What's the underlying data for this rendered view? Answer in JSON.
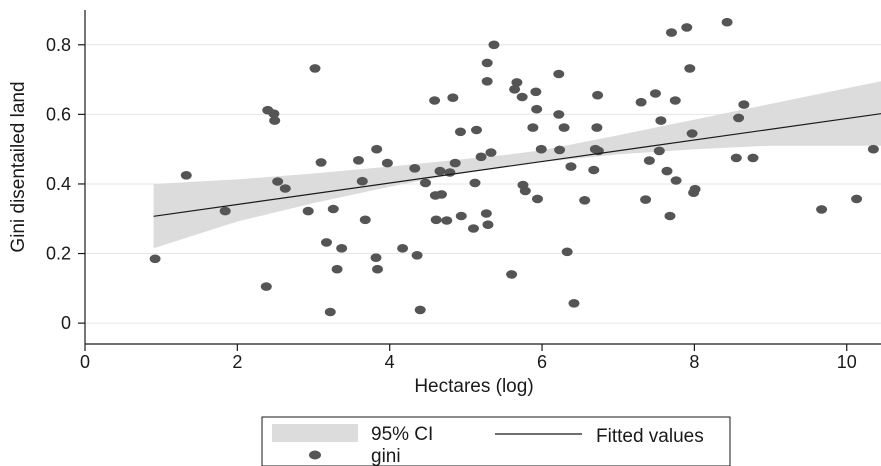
{
  "chart_data": {
    "type": "scatter",
    "xlabel": "Hectares (log)",
    "ylabel": "Gini disentailed land",
    "xlim": [
      0,
      10.45
    ],
    "ylim": [
      -0.06,
      0.9
    ],
    "xticks": [
      0,
      2,
      4,
      6,
      8,
      10
    ],
    "yticks": [
      0,
      0.2,
      0.4,
      0.6,
      0.8
    ],
    "xtick_labels": [
      "0",
      "2",
      "4",
      "6",
      "8",
      "10"
    ],
    "ytick_labels": [
      "0",
      "0.2",
      "0.4",
      "0.6",
      "0.8"
    ],
    "grid": true,
    "legend_position": "bottom",
    "legend": {
      "ci_label": "95% CI",
      "fit_label": "Fitted values",
      "points_label": "gini"
    },
    "colors": {
      "points": "#555555",
      "ci_band": "#dcdcdc",
      "fit_line": "#1a1a1a",
      "grid": "#e6e6e6",
      "axis": "#1a1a1a"
    },
    "fit": {
      "x": [
        0.9,
        10.45
      ],
      "y": [
        0.307,
        0.602
      ]
    },
    "ci": {
      "x": [
        0.9,
        2.0,
        3.0,
        4.0,
        5.0,
        5.5,
        6.0,
        7.0,
        8.0,
        9.0,
        10.45
      ],
      "lower": [
        0.215,
        0.292,
        0.345,
        0.392,
        0.434,
        0.45,
        0.463,
        0.485,
        0.5,
        0.51,
        0.51
      ],
      "upper": [
        0.4,
        0.413,
        0.43,
        0.45,
        0.472,
        0.483,
        0.497,
        0.54,
        0.585,
        0.63,
        0.695
      ]
    },
    "series": [
      {
        "name": "gini",
        "points": [
          [
            0.92,
            0.185
          ],
          [
            1.33,
            0.425
          ],
          [
            1.84,
            0.322
          ],
          [
            2.38,
            0.105
          ],
          [
            2.4,
            0.612
          ],
          [
            2.48,
            0.602
          ],
          [
            2.49,
            0.582
          ],
          [
            2.53,
            0.407
          ],
          [
            2.63,
            0.387
          ],
          [
            2.93,
            0.322
          ],
          [
            3.02,
            0.732
          ],
          [
            3.1,
            0.462
          ],
          [
            3.17,
            0.232
          ],
          [
            3.22,
            0.032
          ],
          [
            3.26,
            0.328
          ],
          [
            3.31,
            0.155
          ],
          [
            3.37,
            0.215
          ],
          [
            3.59,
            0.468
          ],
          [
            3.64,
            0.408
          ],
          [
            3.68,
            0.297
          ],
          [
            3.82,
            0.188
          ],
          [
            3.83,
            0.5
          ],
          [
            3.84,
            0.155
          ],
          [
            3.97,
            0.46
          ],
          [
            4.17,
            0.215
          ],
          [
            4.33,
            0.445
          ],
          [
            4.36,
            0.195
          ],
          [
            4.4,
            0.038
          ],
          [
            4.47,
            0.403
          ],
          [
            4.59,
            0.64
          ],
          [
            4.6,
            0.367
          ],
          [
            4.61,
            0.297
          ],
          [
            4.66,
            0.437
          ],
          [
            4.68,
            0.37
          ],
          [
            4.75,
            0.295
          ],
          [
            4.79,
            0.433
          ],
          [
            4.83,
            0.648
          ],
          [
            4.86,
            0.46
          ],
          [
            4.93,
            0.55
          ],
          [
            4.94,
            0.308
          ],
          [
            5.1,
            0.272
          ],
          [
            5.12,
            0.403
          ],
          [
            5.14,
            0.555
          ],
          [
            5.2,
            0.478
          ],
          [
            5.27,
            0.315
          ],
          [
            5.28,
            0.748
          ],
          [
            5.28,
            0.695
          ],
          [
            5.29,
            0.283
          ],
          [
            5.33,
            0.49
          ],
          [
            5.37,
            0.8
          ],
          [
            5.6,
            0.14
          ],
          [
            5.64,
            0.672
          ],
          [
            5.67,
            0.692
          ],
          [
            5.74,
            0.65
          ],
          [
            5.75,
            0.397
          ],
          [
            5.78,
            0.38
          ],
          [
            5.88,
            0.562
          ],
          [
            5.92,
            0.665
          ],
          [
            5.93,
            0.615
          ],
          [
            5.94,
            0.357
          ],
          [
            5.99,
            0.5
          ],
          [
            6.22,
            0.716
          ],
          [
            6.22,
            0.6
          ],
          [
            6.23,
            0.498
          ],
          [
            6.29,
            0.562
          ],
          [
            6.33,
            0.205
          ],
          [
            6.38,
            0.45
          ],
          [
            6.42,
            0.057
          ],
          [
            6.56,
            0.353
          ],
          [
            6.68,
            0.44
          ],
          [
            6.7,
            0.5
          ],
          [
            6.72,
            0.562
          ],
          [
            6.73,
            0.655
          ],
          [
            6.74,
            0.495
          ],
          [
            7.3,
            0.635
          ],
          [
            7.36,
            0.355
          ],
          [
            7.41,
            0.467
          ],
          [
            7.49,
            0.66
          ],
          [
            7.54,
            0.495
          ],
          [
            7.56,
            0.582
          ],
          [
            7.64,
            0.437
          ],
          [
            7.68,
            0.308
          ],
          [
            7.7,
            0.835
          ],
          [
            7.75,
            0.64
          ],
          [
            7.76,
            0.41
          ],
          [
            7.9,
            0.85
          ],
          [
            7.94,
            0.732
          ],
          [
            7.97,
            0.545
          ],
          [
            7.99,
            0.375
          ],
          [
            8.01,
            0.385
          ],
          [
            8.43,
            0.865
          ],
          [
            8.55,
            0.475
          ],
          [
            8.58,
            0.59
          ],
          [
            8.65,
            0.628
          ],
          [
            8.77,
            0.475
          ],
          [
            9.67,
            0.327
          ],
          [
            10.13,
            0.357
          ],
          [
            10.35,
            0.5
          ]
        ]
      }
    ]
  }
}
